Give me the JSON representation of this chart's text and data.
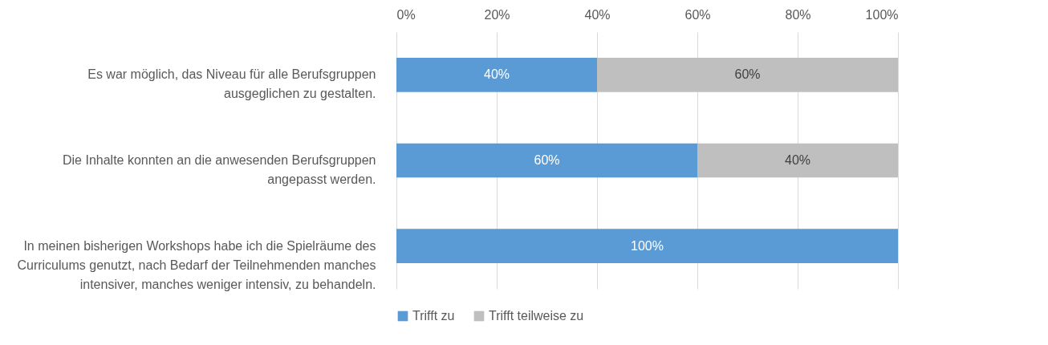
{
  "chart_data": {
    "type": "bar",
    "orientation": "horizontal",
    "stacked": true,
    "categories": [
      "Es war möglich, das Niveau für alle Berufsgruppen ausgeglichen zu gestalten.",
      "Die Inhalte konnten an die anwesenden Berufsgruppen angepasst werden.",
      "In meinen bisherigen Workshops habe ich die Spielräume des Curriculums genutzt, nach Bedarf der Teilnehmenden manches intensiver, manches weniger intensiv, zu behandeln."
    ],
    "series": [
      {
        "name": "Trifft zu",
        "color": "#5b9bd5",
        "values": [
          40,
          60,
          100
        ],
        "value_labels": [
          "40%",
          "60%",
          "100%"
        ]
      },
      {
        "name": "Trifft teilweise zu",
        "color": "#bfbfbf",
        "values": [
          60,
          40,
          null
        ],
        "value_labels": [
          "60%",
          "40%",
          null
        ]
      }
    ],
    "xlim": [
      0,
      100
    ],
    "xticks": [
      {
        "value": 0,
        "label": "0%"
      },
      {
        "value": 20,
        "label": "20%"
      },
      {
        "value": 40,
        "label": "40%"
      },
      {
        "value": 60,
        "label": "60%"
      },
      {
        "value": 80,
        "label": "80%"
      },
      {
        "value": 100,
        "label": "100%"
      }
    ],
    "grid": "x",
    "legend": "bottom"
  }
}
